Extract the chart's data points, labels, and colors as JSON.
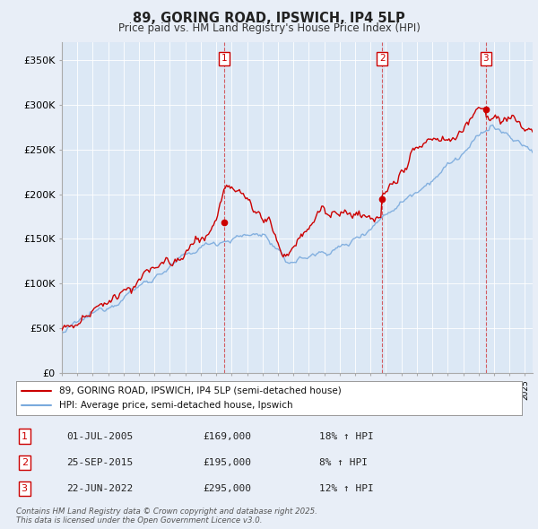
{
  "title": "89, GORING ROAD, IPSWICH, IP4 5LP",
  "subtitle": "Price paid vs. HM Land Registry's House Price Index (HPI)",
  "ylim": [
    0,
    370000
  ],
  "yticks": [
    0,
    50000,
    100000,
    150000,
    200000,
    250000,
    300000,
    350000
  ],
  "ytick_labels": [
    "£0",
    "£50K",
    "£100K",
    "£150K",
    "£200K",
    "£250K",
    "£300K",
    "£350K"
  ],
  "x_start_year": 1995,
  "x_end_year": 2025,
  "sale_color": "#cc0000",
  "hpi_color": "#7aaadd",
  "sale_label": "89, GORING ROAD, IPSWICH, IP4 5LP (semi-detached house)",
  "hpi_label": "HPI: Average price, semi-detached house, Ipswich",
  "plot_bg": "#dce8f5",
  "background_color": "#e8eef7",
  "grid_color": "#ffffff",
  "vline_color": "#cc0000",
  "transactions": [
    {
      "num": 1,
      "date": "01-JUL-2005",
      "price": 169000,
      "pct": "18%",
      "dir": "↑",
      "ref": "HPI",
      "year": 2005.5
    },
    {
      "num": 2,
      "date": "25-SEP-2015",
      "price": 195000,
      "pct": "8%",
      "dir": "↑",
      "ref": "HPI",
      "year": 2015.75
    },
    {
      "num": 3,
      "date": "22-JUN-2022",
      "price": 295000,
      "pct": "12%",
      "dir": "↑",
      "ref": "HPI",
      "year": 2022.47
    }
  ],
  "footer1": "Contains HM Land Registry data © Crown copyright and database right 2025.",
  "footer2": "This data is licensed under the Open Government Licence v3.0."
}
